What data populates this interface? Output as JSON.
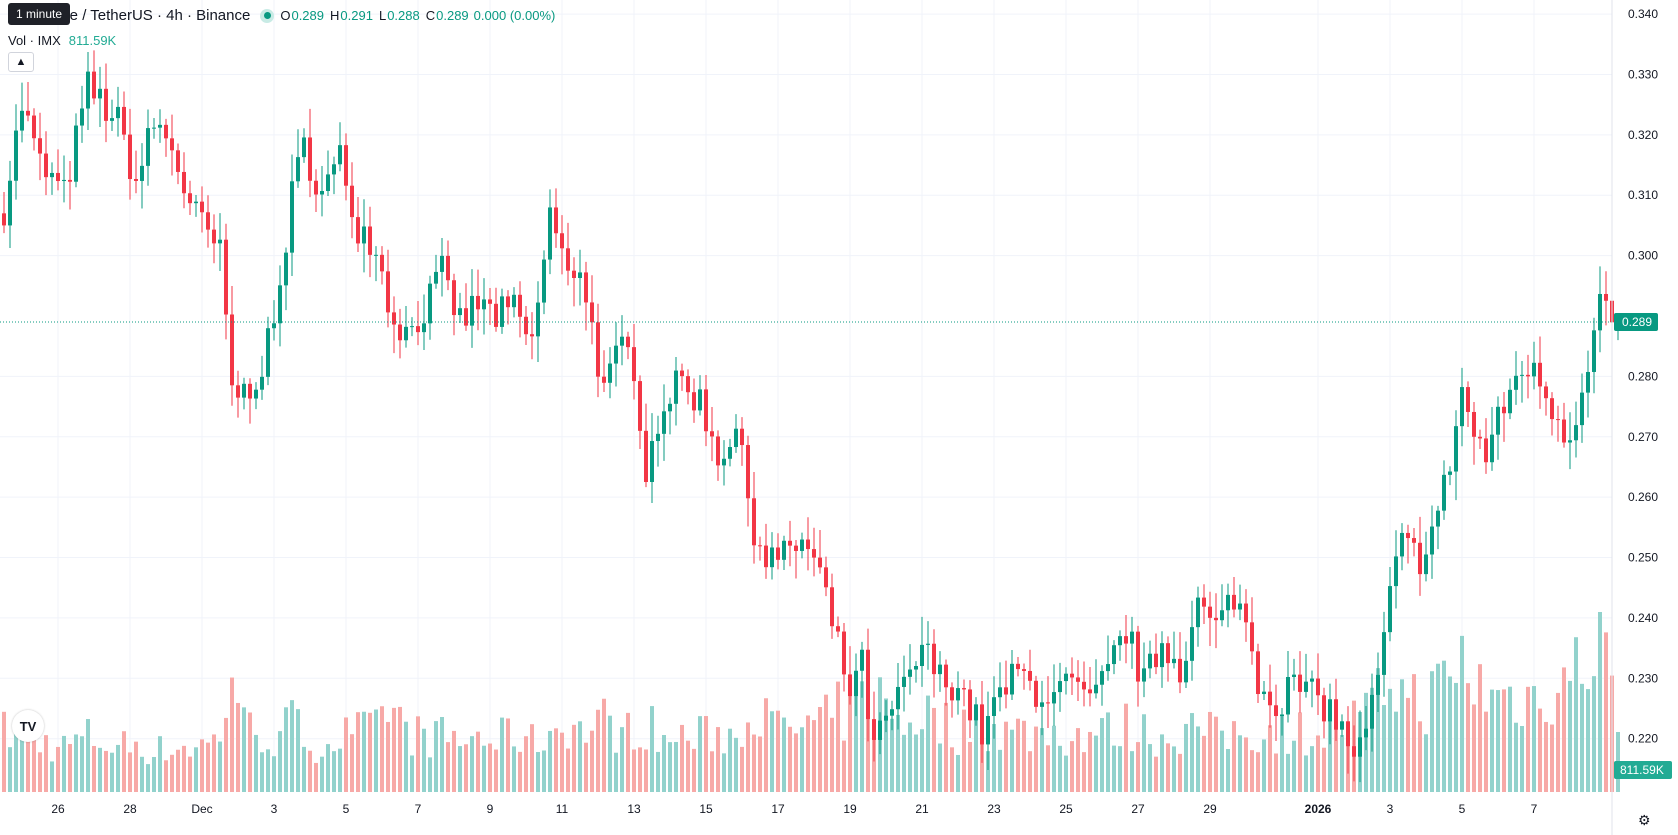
{
  "tooltip": "1 minute",
  "legend": {
    "title": "Immutable / TetherUS · 4h · Binance",
    "o_key": "O",
    "o": "0.289",
    "h_key": "H",
    "h": "0.291",
    "l_key": "L",
    "l": "0.288",
    "c_key": "C",
    "c": "0.289",
    "change": "0.000 (0.00%)",
    "vol_label": "Vol · IMX",
    "vol_value": "811.59K"
  },
  "icons": {
    "collapse": "chevron-up-icon",
    "logo": "tradingview-logo",
    "settings": "gear-icon"
  },
  "colors": {
    "up": "#089981",
    "down": "#F23645",
    "up_vol": "#92d2cc",
    "down_vol": "#f7a9a7",
    "grid": "#f0f3fa"
  },
  "chart_data": {
    "type": "candlestick",
    "symbol": "IMX/USDT",
    "interval": "4h",
    "ylim": [
      0.212,
      0.342
    ],
    "yticks": [
      "0.340",
      "0.330",
      "0.320",
      "0.310",
      "0.300",
      "0.280",
      "0.270",
      "0.260",
      "0.250",
      "0.240",
      "0.230",
      "0.220"
    ],
    "xticks": [
      {
        "label": "26",
        "i": 9
      },
      {
        "label": "28",
        "i": 21
      },
      {
        "label": "Dec",
        "i": 33
      },
      {
        "label": "3",
        "i": 45
      },
      {
        "label": "5",
        "i": 57
      },
      {
        "label": "7",
        "i": 69
      },
      {
        "label": "9",
        "i": 81
      },
      {
        "label": "11",
        "i": 93
      },
      {
        "label": "13",
        "i": 105
      },
      {
        "label": "15",
        "i": 117
      },
      {
        "label": "17",
        "i": 129
      },
      {
        "label": "19",
        "i": 141
      },
      {
        "label": "21",
        "i": 153
      },
      {
        "label": "23",
        "i": 165
      },
      {
        "label": "25",
        "i": 177
      },
      {
        "label": "27",
        "i": 189
      },
      {
        "label": "29",
        "i": 201
      },
      {
        "label": "2026",
        "i": 219,
        "bold": true
      },
      {
        "label": "3",
        "i": 231
      },
      {
        "label": "5",
        "i": 243
      },
      {
        "label": "7",
        "i": 255
      }
    ],
    "last_price": "0.289",
    "last_volume": "811.59K",
    "anchors": [
      [
        0,
        0.308,
        0.6
      ],
      [
        3,
        0.325,
        0.55
      ],
      [
        6,
        0.315,
        0.5
      ],
      [
        10,
        0.31,
        0.45
      ],
      [
        14,
        0.328,
        0.55
      ],
      [
        19,
        0.322,
        0.45
      ],
      [
        22,
        0.312,
        0.5
      ],
      [
        25,
        0.322,
        0.4
      ],
      [
        28,
        0.318,
        0.45
      ],
      [
        31,
        0.308,
        0.45
      ],
      [
        35,
        0.302,
        0.5
      ],
      [
        36,
        0.3,
        0.55
      ],
      [
        38,
        0.278,
        1.3
      ],
      [
        40,
        0.277,
        0.65
      ],
      [
        43,
        0.282,
        0.6
      ],
      [
        45,
        0.288,
        0.5
      ],
      [
        48,
        0.31,
        0.7
      ],
      [
        50,
        0.318,
        0.55
      ],
      [
        53,
        0.31,
        0.45
      ],
      [
        56,
        0.316,
        0.55
      ],
      [
        59,
        0.305,
        0.6
      ],
      [
        62,
        0.302,
        0.6
      ],
      [
        64,
        0.292,
        0.9
      ],
      [
        67,
        0.287,
        0.6
      ],
      [
        70,
        0.291,
        0.55
      ],
      [
        73,
        0.297,
        0.55
      ],
      [
        76,
        0.289,
        0.5
      ],
      [
        79,
        0.292,
        0.55
      ],
      [
        82,
        0.29,
        0.5
      ],
      [
        85,
        0.291,
        0.6
      ],
      [
        88,
        0.285,
        0.5
      ],
      [
        91,
        0.307,
        0.6
      ],
      [
        94,
        0.296,
        0.7
      ],
      [
        96,
        0.299,
        0.6
      ],
      [
        98,
        0.288,
        0.65
      ],
      [
        100,
        0.277,
        0.7
      ],
      [
        103,
        0.285,
        0.6
      ],
      [
        105,
        0.282,
        0.6
      ],
      [
        107,
        0.265,
        0.7
      ],
      [
        110,
        0.276,
        0.5
      ],
      [
        113,
        0.279,
        0.55
      ],
      [
        116,
        0.276,
        0.55
      ],
      [
        119,
        0.267,
        0.6
      ],
      [
        122,
        0.271,
        0.55
      ],
      [
        125,
        0.255,
        0.95
      ],
      [
        127,
        0.25,
        0.7
      ],
      [
        130,
        0.25,
        0.6
      ],
      [
        133,
        0.253,
        0.65
      ],
      [
        136,
        0.247,
        0.65
      ],
      [
        139,
        0.235,
        0.8
      ],
      [
        141,
        0.228,
        0.75
      ],
      [
        143,
        0.232,
        0.9
      ],
      [
        145,
        0.218,
        1.05
      ],
      [
        147,
        0.223,
        0.8
      ],
      [
        150,
        0.228,
        0.7
      ],
      [
        153,
        0.235,
        0.8
      ],
      [
        156,
        0.23,
        0.7
      ],
      [
        159,
        0.229,
        0.6
      ],
      [
        161,
        0.225,
        0.65
      ],
      [
        163,
        0.221,
        0.7
      ],
      [
        166,
        0.227,
        0.6
      ],
      [
        169,
        0.231,
        0.6
      ],
      [
        172,
        0.228,
        0.6
      ],
      [
        175,
        0.227,
        0.6
      ],
      [
        178,
        0.229,
        0.55
      ],
      [
        181,
        0.225,
        0.6
      ],
      [
        184,
        0.231,
        0.6
      ],
      [
        187,
        0.238,
        0.65
      ],
      [
        190,
        0.229,
        0.6
      ],
      [
        193,
        0.236,
        0.55
      ],
      [
        196,
        0.232,
        0.6
      ],
      [
        199,
        0.242,
        0.65
      ],
      [
        202,
        0.238,
        0.55
      ],
      [
        205,
        0.244,
        0.6
      ],
      [
        207,
        0.239,
        0.6
      ],
      [
        209,
        0.23,
        0.6
      ],
      [
        212,
        0.226,
        0.6
      ],
      [
        215,
        0.229,
        0.6
      ],
      [
        218,
        0.227,
        0.6
      ],
      [
        221,
        0.225,
        0.6
      ],
      [
        224,
        0.219,
        0.7
      ],
      [
        226,
        0.218,
        0.7
      ],
      [
        229,
        0.229,
        0.9
      ],
      [
        231,
        0.244,
        1.2
      ],
      [
        233,
        0.252,
        1.0
      ],
      [
        236,
        0.25,
        0.9
      ],
      [
        239,
        0.257,
        1.0
      ],
      [
        241,
        0.266,
        1.1
      ],
      [
        243,
        0.278,
        1.3
      ],
      [
        245,
        0.27,
        1.1
      ],
      [
        247,
        0.267,
        1.0
      ],
      [
        250,
        0.275,
        0.95
      ],
      [
        253,
        0.282,
        0.95
      ],
      [
        256,
        0.279,
        0.95
      ],
      [
        259,
        0.273,
        1.1
      ],
      [
        261,
        0.27,
        1.15
      ],
      [
        264,
        0.283,
        1.35
      ],
      [
        266,
        0.293,
        1.7
      ],
      [
        268,
        0.289,
        0.9
      ],
      [
        269,
        0.289,
        0.6
      ]
    ]
  }
}
